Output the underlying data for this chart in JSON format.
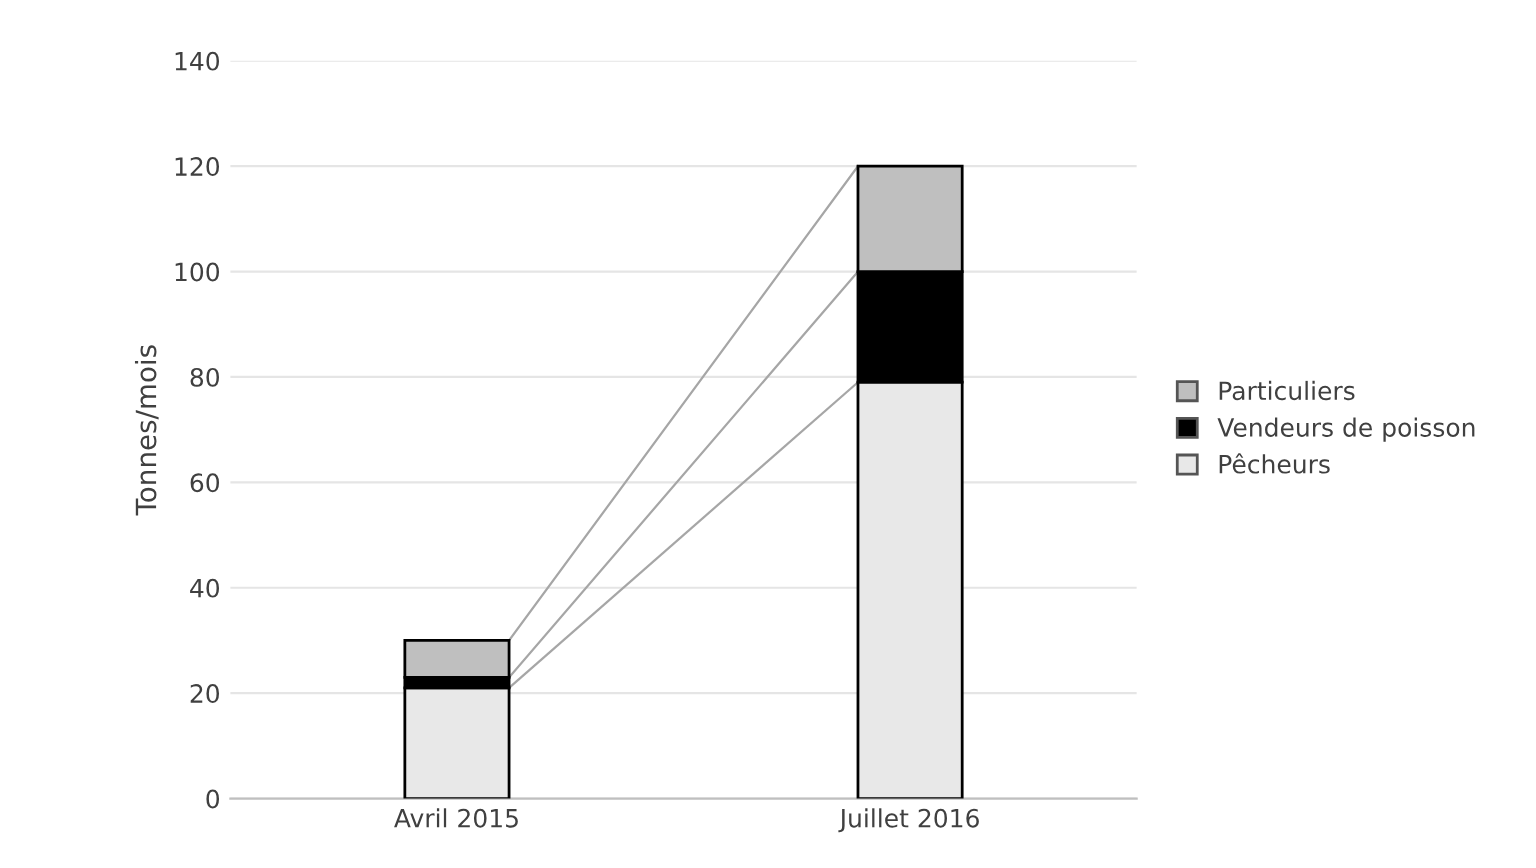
{
  "chart_data": {
    "type": "bar",
    "stacked": true,
    "ylabel": "Tonnes/mois",
    "categories": [
      "Avril 2015",
      "Juillet 2016"
    ],
    "series": [
      {
        "name": "Pêcheurs",
        "color": "#e8e8e8",
        "values": [
          21,
          79
        ]
      },
      {
        "name": "Vendeurs de poisson",
        "color": "#000000",
        "values": [
          2,
          21
        ]
      },
      {
        "name": "Particuliers",
        "color": "#bfbfbf",
        "values": [
          7,
          20
        ]
      }
    ],
    "ylim": [
      0,
      140
    ],
    "yticks": [
      0,
      20,
      40,
      60,
      80,
      100,
      120,
      140
    ],
    "grid": "y",
    "legend": "right"
  }
}
